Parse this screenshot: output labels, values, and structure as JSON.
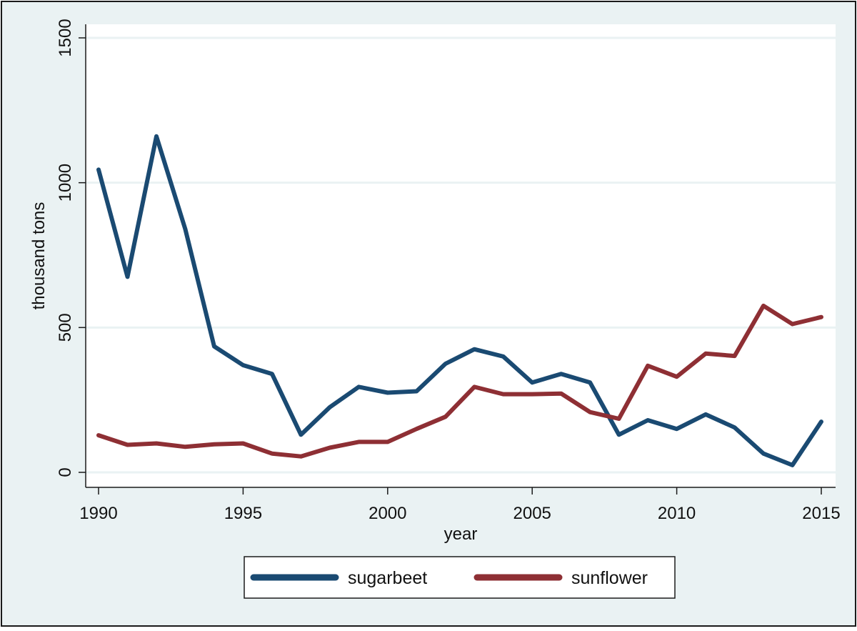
{
  "chart_data": {
    "type": "line",
    "title": "",
    "xlabel": "year",
    "ylabel": "thousand tons",
    "xlim": [
      1990,
      2015
    ],
    "ylim": [
      0,
      1500
    ],
    "xticks": [
      "1990",
      "1995",
      "2000",
      "2005",
      "2010",
      "2015"
    ],
    "yticks": [
      "0",
      "500",
      "1000",
      "1500"
    ],
    "grid": true,
    "legend_position": "bottom",
    "x": [
      1990,
      1991,
      1992,
      1993,
      1994,
      1995,
      1996,
      1997,
      1998,
      1999,
      2000,
      2001,
      2002,
      2003,
      2004,
      2005,
      2006,
      2007,
      2008,
      2009,
      2010,
      2011,
      2012,
      2013,
      2014,
      2015
    ],
    "series": [
      {
        "name": "sugarbeet",
        "color": "#1a4a72",
        "values": [
          1045,
          675,
          1160,
          840,
          435,
          370,
          340,
          130,
          225,
          295,
          275,
          280,
          375,
          425,
          400,
          310,
          340,
          310,
          130,
          180,
          150,
          200,
          155,
          65,
          25,
          175
        ]
      },
      {
        "name": "sunflower",
        "color": "#8e2f34",
        "values": [
          128,
          95,
          100,
          88,
          97,
          100,
          65,
          55,
          85,
          105,
          105,
          150,
          192,
          295,
          270,
          270,
          272,
          208,
          185,
          368,
          330,
          410,
          402,
          575,
          512,
          536
        ]
      }
    ]
  }
}
